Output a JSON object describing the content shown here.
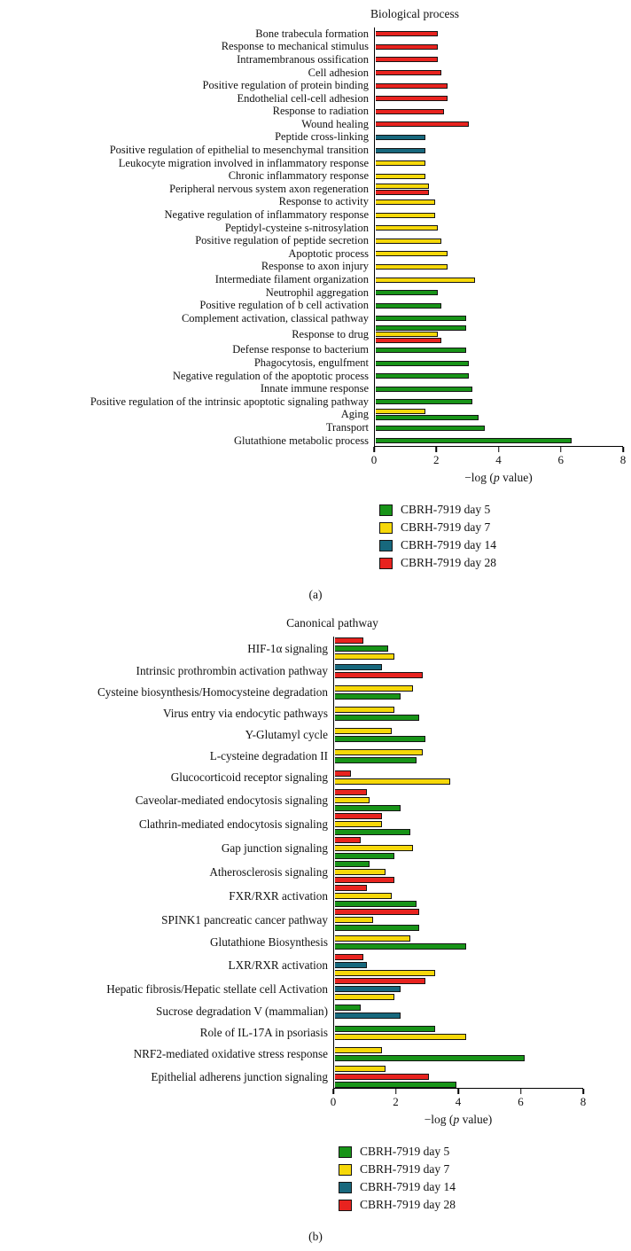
{
  "figure": {
    "panel_a_label": "(a)",
    "panel_b_label": "(b)"
  },
  "xlabel": {
    "pre": "−log (",
    "italic": "p",
    "post": " value)"
  },
  "series": [
    {
      "key": "day5",
      "label": "CBRH-7919 day 5",
      "color": "#189418"
    },
    {
      "key": "day7",
      "label": "CBRH-7919 day 7",
      "color": "#f6d809"
    },
    {
      "key": "day14",
      "label": "CBRH-7919 day 14",
      "color": "#17687d"
    },
    {
      "key": "day28",
      "label": "CBRH-7919 day 28",
      "color": "#e8231f"
    }
  ],
  "chart_data": [
    {
      "type": "bar",
      "orientation": "horizontal",
      "title": "Biological process",
      "panel": "(a)",
      "xlabel": "−log (p value)",
      "xlim": [
        0,
        8
      ],
      "xticks": [
        0,
        2,
        4,
        6,
        8
      ],
      "grid": false,
      "legend_position": "bottom",
      "rows": [
        {
          "label": "Bone trabecula formation",
          "bars": [
            {
              "series": "day28",
              "value": 2.0
            }
          ]
        },
        {
          "label": "Response to mechanical stimulus",
          "bars": [
            {
              "series": "day28",
              "value": 2.0
            }
          ]
        },
        {
          "label": "Intramembranous ossification",
          "bars": [
            {
              "series": "day28",
              "value": 2.0
            }
          ]
        },
        {
          "label": "Cell adhesion",
          "bars": [
            {
              "series": "day28",
              "value": 2.1
            }
          ]
        },
        {
          "label": "Positive regulation of protein binding",
          "bars": [
            {
              "series": "day28",
              "value": 2.3
            }
          ]
        },
        {
          "label": "Endothelial cell-cell adhesion",
          "bars": [
            {
              "series": "day28",
              "value": 2.3
            }
          ]
        },
        {
          "label": "Response to radiation",
          "bars": [
            {
              "series": "day28",
              "value": 2.2
            }
          ]
        },
        {
          "label": "Wound healing",
          "bars": [
            {
              "series": "day28",
              "value": 3.0
            }
          ]
        },
        {
          "label": "Peptide cross-linking",
          "bars": [
            {
              "series": "day14",
              "value": 1.6
            }
          ]
        },
        {
          "label": "Positive regulation of epithelial to mesenchymal transition",
          "bars": [
            {
              "series": "day14",
              "value": 1.6
            }
          ]
        },
        {
          "label": "Leukocyte migration involved in inflammatory response",
          "bars": [
            {
              "series": "day7",
              "value": 1.6
            }
          ]
        },
        {
          "label": "Chronic inflammatory response",
          "bars": [
            {
              "series": "day7",
              "value": 1.6
            }
          ]
        },
        {
          "label": "Peripheral nervous system axon regeneration",
          "bars": [
            {
              "series": "day7",
              "value": 1.7
            },
            {
              "series": "day28",
              "value": 1.7
            }
          ]
        },
        {
          "label": "Response to activity",
          "bars": [
            {
              "series": "day7",
              "value": 1.9
            }
          ]
        },
        {
          "label": "Negative regulation of inflammatory response",
          "bars": [
            {
              "series": "day7",
              "value": 1.9
            }
          ]
        },
        {
          "label": "Peptidyl-cysteine s-nitrosylation",
          "bars": [
            {
              "series": "day7",
              "value": 2.0
            }
          ]
        },
        {
          "label": "Positive regulation of peptide secretion",
          "bars": [
            {
              "series": "day7",
              "value": 2.1
            }
          ]
        },
        {
          "label": "Apoptotic process",
          "bars": [
            {
              "series": "day7",
              "value": 2.3
            }
          ]
        },
        {
          "label": "Response to axon injury",
          "bars": [
            {
              "series": "day7",
              "value": 2.3
            }
          ]
        },
        {
          "label": "Intermediate filament organization",
          "bars": [
            {
              "series": "day7",
              "value": 3.2
            }
          ]
        },
        {
          "label": "Neutrophil aggregation",
          "bars": [
            {
              "series": "day5",
              "value": 2.0
            }
          ]
        },
        {
          "label": "Positive regulation of b cell activation",
          "bars": [
            {
              "series": "day5",
              "value": 2.1
            }
          ]
        },
        {
          "label": "Complement activation, classical pathway",
          "bars": [
            {
              "series": "day5",
              "value": 2.9
            }
          ]
        },
        {
          "label": "Response to drug",
          "bars": [
            {
              "series": "day5",
              "value": 2.9
            },
            {
              "series": "day7",
              "value": 2.0
            },
            {
              "series": "day28",
              "value": 2.1
            }
          ]
        },
        {
          "label": "Defense response to bacterium",
          "bars": [
            {
              "series": "day5",
              "value": 2.9
            }
          ]
        },
        {
          "label": "Phagocytosis, engulfment",
          "bars": [
            {
              "series": "day5",
              "value": 3.0
            }
          ]
        },
        {
          "label": "Negative regulation of the apoptotic process",
          "bars": [
            {
              "series": "day5",
              "value": 3.0
            }
          ]
        },
        {
          "label": "Innate immune response",
          "bars": [
            {
              "series": "day5",
              "value": 3.1
            }
          ]
        },
        {
          "label": "Positive regulation of the intrinsic apoptotic signaling pathway",
          "bars": [
            {
              "series": "day5",
              "value": 3.1
            }
          ]
        },
        {
          "label": "Aging",
          "bars": [
            {
              "series": "day7",
              "value": 1.6
            },
            {
              "series": "day5",
              "value": 3.3
            }
          ]
        },
        {
          "label": "Transport",
          "bars": [
            {
              "series": "day5",
              "value": 3.5
            }
          ]
        },
        {
          "label": "Glutathione metabolic process",
          "bars": [
            {
              "series": "day5",
              "value": 6.3
            }
          ]
        }
      ]
    },
    {
      "type": "bar",
      "orientation": "horizontal",
      "title": "Canonical pathway",
      "panel": "(b)",
      "xlabel": "−log (p value)",
      "xlim": [
        0,
        8
      ],
      "xticks": [
        0,
        2,
        4,
        6,
        8
      ],
      "grid": false,
      "legend_position": "bottom",
      "rows": [
        {
          "label": "HIF-1α signaling",
          "bars": [
            {
              "series": "day28",
              "value": 0.9
            },
            {
              "series": "day5",
              "value": 1.7
            },
            {
              "series": "day7",
              "value": 1.9
            }
          ]
        },
        {
          "label": "Intrinsic prothrombin activation pathway",
          "bars": [
            {
              "series": "day14",
              "value": 1.5
            },
            {
              "series": "day28",
              "value": 2.8
            }
          ]
        },
        {
          "label": "Cysteine biosynthesis/Homocysteine degradation",
          "bars": [
            {
              "series": "day7",
              "value": 2.5
            },
            {
              "series": "day5",
              "value": 2.1
            }
          ]
        },
        {
          "label": "Virus entry via endocytic pathways",
          "bars": [
            {
              "series": "day7",
              "value": 1.9
            },
            {
              "series": "day5",
              "value": 2.7
            }
          ]
        },
        {
          "label": "Y-Glutamyl cycle",
          "bars": [
            {
              "series": "day7",
              "value": 1.8
            },
            {
              "series": "day5",
              "value": 2.9
            }
          ]
        },
        {
          "label": "L-cysteine degradation II",
          "bars": [
            {
              "series": "day7",
              "value": 2.8
            },
            {
              "series": "day5",
              "value": 2.6
            }
          ]
        },
        {
          "label": "Glucocorticoid receptor signaling",
          "bars": [
            {
              "series": "day28",
              "value": 0.5
            },
            {
              "series": "day7",
              "value": 3.7
            }
          ]
        },
        {
          "label": "Caveolar-mediated endocytosis signaling",
          "bars": [
            {
              "series": "day28",
              "value": 1.0
            },
            {
              "series": "day7",
              "value": 1.1
            },
            {
              "series": "day5",
              "value": 2.1
            }
          ]
        },
        {
          "label": "Clathrin-mediated endocytosis signaling",
          "bars": [
            {
              "series": "day28",
              "value": 1.5
            },
            {
              "series": "day7",
              "value": 1.5
            },
            {
              "series": "day5",
              "value": 2.4
            }
          ]
        },
        {
          "label": "Gap junction signaling",
          "bars": [
            {
              "series": "day28",
              "value": 0.8
            },
            {
              "series": "day7",
              "value": 2.5
            },
            {
              "series": "day5",
              "value": 1.9
            }
          ]
        },
        {
          "label": "Atherosclerosis signaling",
          "bars": [
            {
              "series": "day5",
              "value": 1.1
            },
            {
              "series": "day7",
              "value": 1.6
            },
            {
              "series": "day28",
              "value": 1.9
            }
          ]
        },
        {
          "label": "FXR/RXR activation",
          "bars": [
            {
              "series": "day28",
              "value": 1.0
            },
            {
              "series": "day7",
              "value": 1.8
            },
            {
              "series": "day5",
              "value": 2.6
            }
          ]
        },
        {
          "label": "SPINK1 pancreatic cancer pathway",
          "bars": [
            {
              "series": "day28",
              "value": 2.7
            },
            {
              "series": "day7",
              "value": 1.2
            },
            {
              "series": "day5",
              "value": 2.7
            }
          ]
        },
        {
          "label": "Glutathione Biosynthesis",
          "bars": [
            {
              "series": "day7",
              "value": 2.4
            },
            {
              "series": "day5",
              "value": 4.2
            }
          ]
        },
        {
          "label": "LXR/RXR activation",
          "bars": [
            {
              "series": "day28",
              "value": 0.9
            },
            {
              "series": "day14",
              "value": 1.0
            },
            {
              "series": "day7",
              "value": 3.2
            }
          ]
        },
        {
          "label": "Hepatic fibrosis/Hepatic stellate cell Activation",
          "bars": [
            {
              "series": "day28",
              "value": 2.9
            },
            {
              "series": "day14",
              "value": 2.1
            },
            {
              "series": "day7",
              "value": 1.9
            }
          ]
        },
        {
          "label": "Sucrose degradation V (mammalian)",
          "bars": [
            {
              "series": "day5",
              "value": 0.8
            },
            {
              "series": "day14",
              "value": 2.1
            }
          ]
        },
        {
          "label": "Role of IL-17A in psoriasis",
          "bars": [
            {
              "series": "day5",
              "value": 3.2
            },
            {
              "series": "day7",
              "value": 4.2
            }
          ]
        },
        {
          "label": "NRF2-mediated oxidative stress response",
          "bars": [
            {
              "series": "day7",
              "value": 1.5
            },
            {
              "series": "day5",
              "value": 6.1
            }
          ]
        },
        {
          "label": "Epithelial adherens junction signaling",
          "bars": [
            {
              "series": "day7",
              "value": 1.6
            },
            {
              "series": "day28",
              "value": 3.0
            },
            {
              "series": "day5",
              "value": 3.9
            }
          ]
        }
      ]
    }
  ]
}
